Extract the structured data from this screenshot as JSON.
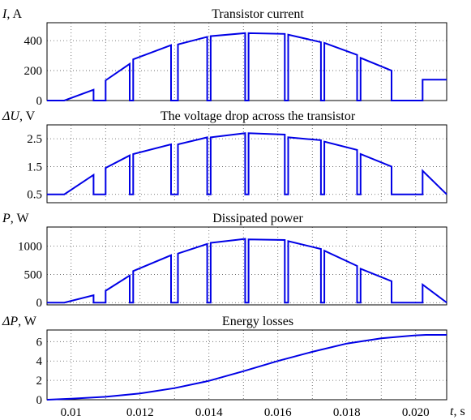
{
  "chart_data": [
    {
      "type": "line",
      "title": "Transistor current",
      "ylabel_symbol": "I",
      "ylabel_unit": ", A",
      "xlim": [
        0.0093,
        0.0209
      ],
      "ylim": [
        0,
        520
      ],
      "yticks": [
        0,
        200,
        400
      ],
      "ytick_labels": [
        "0",
        "200",
        "400"
      ],
      "grid": true,
      "color": "#0000e6",
      "series": [
        {
          "x": [
            0.0093,
            0.0098,
            0.01065,
            0.01065,
            0.0107,
            0.0107,
            0.011,
            0.011,
            0.0117,
            0.0117,
            0.0118,
            0.0118,
            0.0129,
            0.0129,
            0.0131,
            0.0131,
            0.01395,
            0.01395,
            0.01405,
            0.01405,
            0.01505,
            0.01505,
            0.01515,
            0.01515,
            0.0162,
            0.0162,
            0.0163,
            0.0163,
            0.01725,
            0.01725,
            0.01735,
            0.01735,
            0.0183,
            0.0183,
            0.0184,
            0.0184,
            0.0193,
            0.0193,
            0.0202,
            0.0202,
            0.0209
          ],
          "y": [
            0,
            0,
            72,
            0,
            0,
            0,
            0,
            135,
            245,
            0,
            0,
            275,
            370,
            0,
            0,
            375,
            425,
            0,
            0,
            430,
            450,
            0,
            0,
            450,
            445,
            0,
            0,
            440,
            390,
            0,
            0,
            385,
            305,
            0,
            0,
            285,
            200,
            0,
            0,
            140,
            140
          ]
        }
      ]
    },
    {
      "type": "line",
      "title": "The voltage drop across the transistor",
      "ylabel_symbol": "ΔU",
      "ylabel_unit": ", V",
      "xlim": [
        0.0093,
        0.0209
      ],
      "ylim": [
        0.2,
        3.0
      ],
      "yticks": [
        0.5,
        1.5,
        2.5
      ],
      "ytick_labels": [
        "0.5",
        "1.5",
        "2.5"
      ],
      "grid": true,
      "color": "#0000e6",
      "series": [
        {
          "x": [
            0.0093,
            0.0098,
            0.01065,
            0.01065,
            0.0107,
            0.0107,
            0.011,
            0.011,
            0.0117,
            0.0117,
            0.0118,
            0.0118,
            0.0129,
            0.0129,
            0.0131,
            0.0131,
            0.01395,
            0.01395,
            0.01405,
            0.01405,
            0.01505,
            0.01505,
            0.01515,
            0.01515,
            0.0162,
            0.0162,
            0.0163,
            0.0163,
            0.01725,
            0.01725,
            0.01735,
            0.01735,
            0.0183,
            0.0183,
            0.0184,
            0.0184,
            0.0193,
            0.0193,
            0.0202,
            0.0202,
            0.0209
          ],
          "y": [
            0.5,
            0.5,
            1.2,
            0.5,
            0.5,
            0.5,
            0.5,
            1.45,
            1.9,
            0.5,
            0.5,
            1.95,
            2.3,
            0.5,
            0.5,
            2.3,
            2.55,
            0.5,
            0.5,
            2.55,
            2.7,
            0.5,
            0.5,
            2.7,
            2.65,
            0.5,
            0.5,
            2.55,
            2.45,
            0.5,
            0.5,
            2.4,
            2.1,
            0.5,
            0.5,
            1.95,
            1.5,
            0.5,
            0.5,
            1.35,
            0.5
          ]
        }
      ]
    },
    {
      "type": "line",
      "title": "Dissipated power",
      "ylabel_symbol": "P",
      "ylabel_unit": ", W",
      "xlim": [
        0.0093,
        0.0209
      ],
      "ylim": [
        -40,
        1340
      ],
      "yticks": [
        0,
        500,
        1000
      ],
      "ytick_labels": [
        "0",
        "500",
        "1000"
      ],
      "grid": true,
      "color": "#0000e6",
      "series": [
        {
          "x": [
            0.0093,
            0.0098,
            0.01065,
            0.01065,
            0.0107,
            0.0107,
            0.011,
            0.011,
            0.0117,
            0.0117,
            0.0118,
            0.0118,
            0.0129,
            0.0129,
            0.0131,
            0.0131,
            0.01395,
            0.01395,
            0.01405,
            0.01405,
            0.01505,
            0.01505,
            0.01515,
            0.01515,
            0.0162,
            0.0162,
            0.0163,
            0.0163,
            0.01725,
            0.01725,
            0.01735,
            0.01735,
            0.0183,
            0.0183,
            0.0184,
            0.0184,
            0.0193,
            0.0193,
            0.0202,
            0.0202,
            0.0209
          ],
          "y": [
            0,
            0,
            130,
            0,
            0,
            0,
            0,
            210,
            480,
            0,
            0,
            560,
            840,
            0,
            0,
            870,
            1040,
            0,
            0,
            1060,
            1130,
            0,
            0,
            1120,
            1110,
            0,
            0,
            1090,
            950,
            0,
            0,
            920,
            650,
            0,
            0,
            600,
            380,
            0,
            0,
            320,
            0
          ]
        }
      ]
    },
    {
      "type": "line",
      "title": "Energy losses",
      "ylabel_symbol": "ΔP",
      "ylabel_unit": ", W",
      "xlabel_symbol": "t",
      "xlabel_unit": ", s",
      "xlim": [
        0.0093,
        0.0209
      ],
      "ylim": [
        0,
        7.2
      ],
      "yticks": [
        0,
        2,
        4,
        6
      ],
      "ytick_labels": [
        "0",
        "2",
        "4",
        "6"
      ],
      "xticks": [
        0.01,
        0.012,
        0.014,
        0.016,
        0.018,
        0.02
      ],
      "xtick_labels": [
        "0.01",
        "0.012",
        "0.014",
        "0.016",
        "0.018",
        "0.020"
      ],
      "grid": true,
      "color": "#0000e6",
      "series": [
        {
          "x": [
            0.0093,
            0.01,
            0.011,
            0.012,
            0.013,
            0.014,
            0.015,
            0.016,
            0.017,
            0.018,
            0.019,
            0.02,
            0.0203,
            0.0209
          ],
          "y": [
            0.0,
            0.1,
            0.3,
            0.65,
            1.2,
            1.95,
            2.95,
            4.0,
            4.95,
            5.8,
            6.35,
            6.65,
            6.7,
            6.7
          ]
        }
      ]
    }
  ]
}
